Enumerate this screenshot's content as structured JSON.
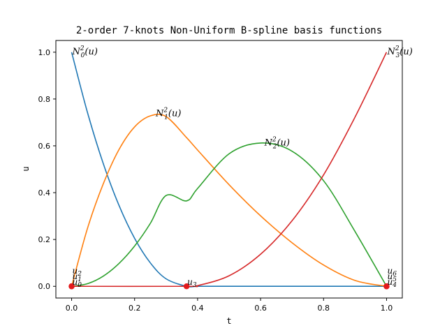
{
  "chart_data": {
    "type": "line",
    "title": "2-order 7-knots Non-Uniform B-spline basis functions",
    "xlabel": "t",
    "ylabel": "u",
    "xlim": [
      -0.05,
      1.05
    ],
    "ylim": [
      -0.05,
      1.05
    ],
    "xticks": [
      0.0,
      0.2,
      0.4,
      0.6,
      0.8,
      1.0
    ],
    "xtick_labels": [
      "0.0",
      "0.2",
      "0.4",
      "0.6",
      "0.8",
      "1.0"
    ],
    "yticks": [
      0.0,
      0.2,
      0.4,
      0.6,
      0.8,
      1.0
    ],
    "ytick_labels": [
      "0.0",
      "0.2",
      "0.4",
      "0.6",
      "0.8",
      "1.0"
    ],
    "grid": false,
    "knots": [
      0.0,
      0.0,
      0.0,
      0.365,
      1.0,
      1.0,
      1.0
    ],
    "knot_color": "#e31a1c",
    "series": [
      {
        "color": "#1f77b4",
        "x": [
          0.0,
          0.05,
          0.1,
          0.15,
          0.2,
          0.25,
          0.3,
          0.365,
          0.4,
          0.5,
          0.6,
          0.7,
          0.8,
          0.9,
          1.0
        ],
        "y": [
          1.0,
          0.744,
          0.526,
          0.347,
          0.205,
          0.1,
          0.032,
          0.0,
          0.0,
          0.0,
          0.0,
          0.0,
          0.0,
          0.0,
          0.0
        ],
        "label": "N_0^2(u)",
        "label_main": "N",
        "label_sup": "2",
        "label_sub": "0",
        "label_tail": "(u)",
        "label_at": [
          0.0,
          1.0
        ]
      },
      {
        "color": "#ff7f0e",
        "x": [
          0.0,
          0.05,
          0.1,
          0.15,
          0.2,
          0.25,
          0.3,
          0.365,
          0.4,
          0.5,
          0.6,
          0.7,
          0.8,
          0.9,
          1.0
        ],
        "y": [
          0.0,
          0.246,
          0.436,
          0.583,
          0.681,
          0.728,
          0.725,
          0.635,
          0.582,
          0.434,
          0.301,
          0.186,
          0.091,
          0.025,
          0.0
        ],
        "label": "N_1^2(u)",
        "label_main": "N",
        "label_sup": "2",
        "label_sub": "1",
        "label_tail": "(u)",
        "label_at": [
          0.265,
          0.735
        ]
      },
      {
        "color": "#2ca02c",
        "x": [
          0.0,
          0.05,
          0.1,
          0.15,
          0.2,
          0.25,
          0.3,
          0.365,
          0.4,
          0.5,
          0.6,
          0.7,
          0.8,
          0.9,
          1.0
        ],
        "y": [
          0.0,
          0.011,
          0.043,
          0.097,
          0.172,
          0.269,
          0.388,
          0.365,
          0.418,
          0.566,
          0.612,
          0.577,
          0.451,
          0.234,
          0.0
        ],
        "label": "N_2^2(u)",
        "label_main": "N",
        "label_sup": "2",
        "label_sub": "2",
        "label_tail": "(u)",
        "label_at": [
          0.61,
          0.61
        ]
      },
      {
        "color": "#d62728",
        "x": [
          0.0,
          0.365,
          0.4,
          0.5,
          0.6,
          0.7,
          0.8,
          0.9,
          1.0
        ],
        "y": [
          0.0,
          0.0,
          0.003,
          0.045,
          0.137,
          0.28,
          0.476,
          0.723,
          1.0
        ],
        "label": "N_3^2(u)",
        "label_main": "N",
        "label_sup": "2",
        "label_sub": "3",
        "label_tail": "(u)",
        "label_at": [
          1.0,
          1.0
        ]
      }
    ],
    "knot_labels": [
      {
        "label": "u_2",
        "main": "u",
        "sub": "2",
        "at": [
          0.0,
          0.0
        ],
        "dy": -18
      },
      {
        "label": "u_1",
        "main": "u",
        "sub": "1",
        "at": [
          0.0,
          0.0
        ],
        "dy": -10
      },
      {
        "label": "u_0",
        "main": "u",
        "sub": "0",
        "at": [
          0.0,
          0.0
        ],
        "dy": -2
      },
      {
        "label": "u_3",
        "main": "u",
        "sub": "3",
        "at": [
          0.365,
          0.0
        ],
        "dy": -2
      },
      {
        "label": "u_6",
        "main": "u",
        "sub": "6",
        "at": [
          1.0,
          0.0
        ],
        "dy": -18
      },
      {
        "label": "u_5",
        "main": "u",
        "sub": "5",
        "at": [
          1.0,
          0.0
        ],
        "dy": -10
      },
      {
        "label": "u_4",
        "main": "u",
        "sub": "4",
        "at": [
          1.0,
          0.0
        ],
        "dy": -2
      }
    ]
  }
}
